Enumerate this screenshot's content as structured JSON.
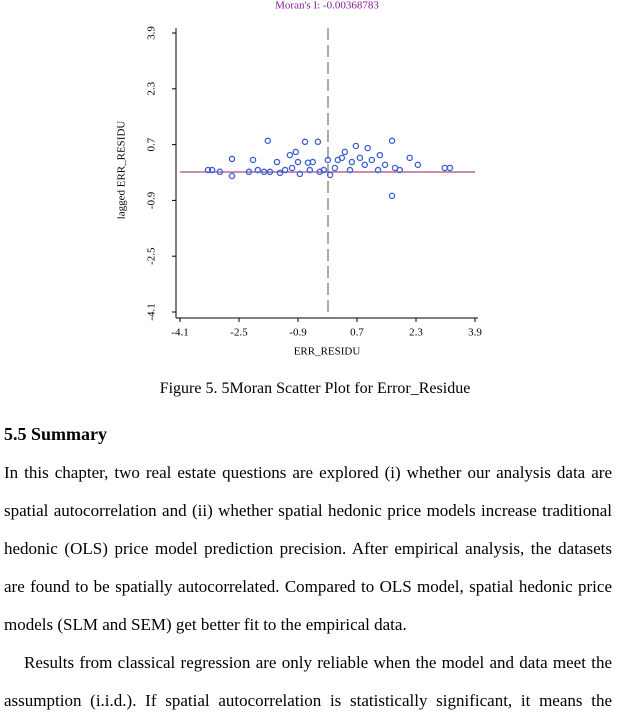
{
  "chart_data": {
    "type": "scatter",
    "title": "Moran's I: -0.00368783",
    "x_label": "ERR_RESIDU",
    "y_label": "lagged ERR_RESIDU",
    "color": "#3a5fd0",
    "xlim": [
      -4.1,
      3.9
    ],
    "ylim": [
      -4.1,
      3.9
    ],
    "xticks": [
      -4.1,
      -2.5,
      -0.9,
      0.7,
      2.3,
      3.9
    ],
    "yticks": [
      -4.1,
      -2.5,
      -0.9,
      0.7,
      2.3,
      3.9
    ],
    "x": [
      -3.34,
      -3.23,
      -3.02,
      -2.69,
      -2.69,
      -2.23,
      -2.12,
      -1.99,
      -1.82,
      -1.72,
      -1.66,
      -1.47,
      -1.39,
      -1.25,
      -1.12,
      -1.06,
      -0.96,
      -0.9,
      -0.85,
      -0.71,
      -0.63,
      -0.58,
      -0.5,
      -0.36,
      -0.31,
      -0.2,
      -0.09,
      -0.03,
      0.1,
      0.18,
      0.29,
      0.37,
      0.51,
      0.56,
      0.67,
      0.78,
      0.91,
      0.99,
      1.1,
      1.27,
      1.32,
      1.46,
      1.65,
      1.73,
      1.86,
      2.13,
      2.35,
      1.65,
      3.08,
      3.22
    ],
    "y": [
      -0.03,
      -0.03,
      -0.08,
      0.29,
      -0.2,
      -0.08,
      0.26,
      -0.03,
      -0.08,
      0.81,
      -0.08,
      0.2,
      -0.11,
      -0.03,
      0.4,
      0.03,
      0.49,
      0.2,
      -0.14,
      0.78,
      0.18,
      -0.03,
      0.2,
      0.78,
      -0.08,
      -0.03,
      0.26,
      -0.17,
      0.03,
      0.26,
      0.32,
      0.49,
      -0.03,
      0.2,
      0.66,
      0.32,
      0.12,
      0.6,
      0.26,
      -0.03,
      0.4,
      0.12,
      0.81,
      0.03,
      -0.03,
      0.32,
      0.12,
      -0.77,
      0.03,
      0.03
    ]
  },
  "caption": "Figure 5. 5Moran Scatter Plot for Error_Residue",
  "section": {
    "heading": "5.5 Summary",
    "paragraphs": [
      "In this chapter, two real estate questions are explored (i) whether our analysis data are spatial autocorrelation and (ii) whether spatial hedonic price models increase traditional hedonic (OLS) price model prediction precision. After empirical analysis, the datasets are found to be spatially autocorrelated. Compared to OLS model, spatial hedonic price models (SLM and SEM) get better fit to the empirical data.",
      "Results from classical regression are only reliable when the model and data meet the assumption (i.i.d.). If spatial autocorrelation is statistically significant, it means the"
    ]
  }
}
